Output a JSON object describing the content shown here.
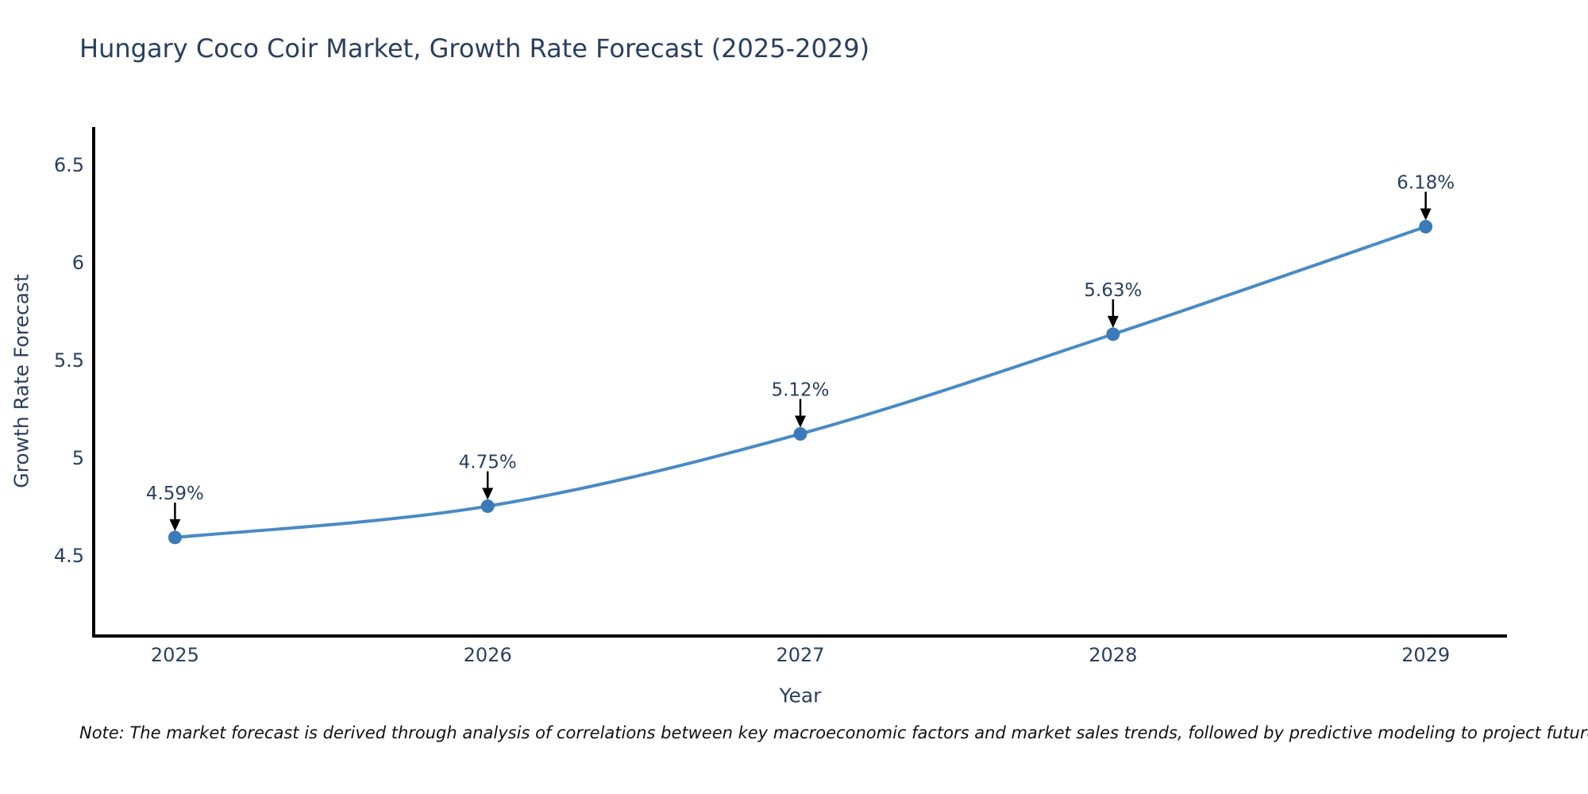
{
  "page": {
    "background": "#ffffff"
  },
  "note": {
    "text": "Note: The market forecast is derived through analysis of correlations between key macroeconomic factors and market sales trends, followed by predictive modeling to project future sales"
  },
  "chart_data": {
    "type": "line",
    "title": "Hungary Coco Coir Market, Growth Rate Forecast (2025-2029)",
    "xlabel": "Year",
    "ylabel": "Growth Rate Forecast",
    "x": [
      2025,
      2026,
      2027,
      2028,
      2029
    ],
    "series": [
      {
        "name": "Growth Rate Forecast",
        "values": [
          4.59,
          4.75,
          5.12,
          5.63,
          6.18
        ]
      }
    ],
    "point_labels": [
      "4.59%",
      "4.75%",
      "5.12%",
      "5.63%",
      "6.18%"
    ],
    "xtick_labels": [
      "2025",
      "2026",
      "2027",
      "2028",
      "2029"
    ],
    "ytick_labels": [
      "4.5",
      "5",
      "5.5",
      "6",
      "6.5"
    ],
    "ytick_values": [
      4.5,
      5.0,
      5.5,
      6.0,
      6.5
    ],
    "xlim": [
      2024.74,
      2029.26
    ],
    "ylim": [
      4.086,
      6.69
    ],
    "grid": false,
    "legend_position": "none",
    "line_shape": "spline",
    "annotations_have_arrows": true,
    "colors": {
      "line": "#4a8ac4",
      "marker": "#3b7ab8",
      "axis": "#000000",
      "text": "#2a3f5f",
      "annotation_text": "#2a3f5f",
      "annotation_arrow": "#000000",
      "note_text": "#111111"
    }
  }
}
